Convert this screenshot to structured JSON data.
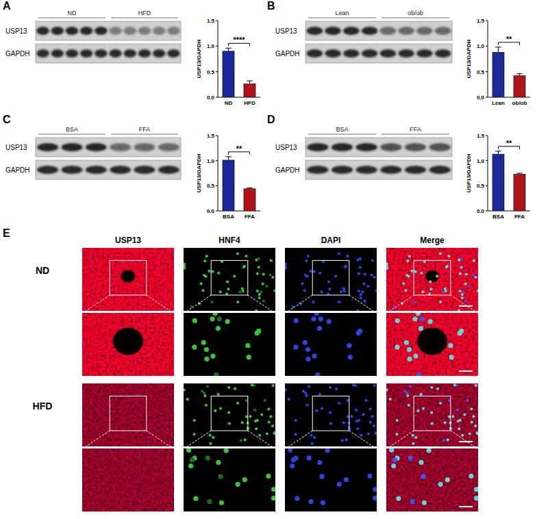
{
  "chart_data": [
    {
      "type": "bar",
      "panel": "A",
      "categories": [
        "ND",
        "HFD"
      ],
      "values": [
        0.9,
        0.26
      ],
      "errors": [
        0.06,
        0.06
      ],
      "colors": [
        "#1a2a9c",
        "#b0141a"
      ],
      "y_label": "USP13/GAPDH",
      "annotation": "****",
      "ylim": [
        0,
        1.5
      ],
      "yticks": [
        {
          "value": 0,
          "label": "0.0"
        },
        {
          "value": 0.5,
          "label": "0.5"
        },
        {
          "value": 1,
          "label": "1.0"
        },
        {
          "value": 1.5,
          "label": "1.5"
        }
      ],
      "grid": false
    },
    {
      "type": "bar",
      "panel": "B",
      "categories": [
        "Lean",
        "ob/ob"
      ],
      "values": [
        0.88,
        0.42
      ],
      "errors": [
        0.1,
        0.04
      ],
      "colors": [
        "#1a2a9c",
        "#b0141a"
      ],
      "y_label": "USP13/GAPDH",
      "annotation": "**",
      "ylim": [
        0,
        1.5
      ],
      "yticks": [
        {
          "value": 0,
          "label": "0.0"
        },
        {
          "value": 0.5,
          "label": "0.5"
        },
        {
          "value": 1,
          "label": "1.0"
        },
        {
          "value": 1.5,
          "label": "1.5"
        }
      ],
      "grid": false
    },
    {
      "type": "bar",
      "panel": "C",
      "categories": [
        "BSA",
        "FFA"
      ],
      "values": [
        1.01,
        0.44
      ],
      "errors": [
        0.07,
        0.02
      ],
      "colors": [
        "#1a2a9c",
        "#b0141a"
      ],
      "y_label": "USP13/GAPDH",
      "annotation": "**",
      "ylim": [
        0,
        1.5
      ],
      "yticks": [
        {
          "value": 0,
          "label": "0.0"
        },
        {
          "value": 0.5,
          "label": "0.5"
        },
        {
          "value": 1,
          "label": "1.0"
        },
        {
          "value": 1.5,
          "label": "1.5"
        }
      ],
      "grid": false
    },
    {
      "type": "bar",
      "panel": "D",
      "categories": [
        "BSA",
        "FFA"
      ],
      "values": [
        1.13,
        0.73
      ],
      "errors": [
        0.06,
        0.02
      ],
      "colors": [
        "#1a2a9c",
        "#b0141a"
      ],
      "y_label": "USP13/GAPDH",
      "annotation": "**",
      "ylim": [
        0,
        1.5
      ],
      "yticks": [
        {
          "value": 0,
          "label": "0.0"
        },
        {
          "value": 0.5,
          "label": "0.5"
        },
        {
          "value": 1,
          "label": "1.0"
        },
        {
          "value": 1.5,
          "label": "1.5"
        }
      ],
      "grid": false
    }
  ],
  "blots": [
    {
      "rows": [
        "USP13",
        "GAPDH"
      ],
      "groups": [
        {
          "label": "ND",
          "lanes": 5
        },
        {
          "label": "HFD",
          "lanes": 5
        }
      ]
    },
    {
      "rows": [
        "USP13",
        "GAPDH"
      ],
      "groups": [
        {
          "label": "Lean",
          "lanes": 4
        },
        {
          "label": "ob/ob",
          "lanes": 4
        }
      ]
    },
    {
      "rows": [
        "USP13",
        "GAPDH"
      ],
      "groups": [
        {
          "label": "BSA",
          "lanes": 3
        },
        {
          "label": "FFA",
          "lanes": 3
        }
      ]
    },
    {
      "rows": [
        "USP13",
        "GAPDH"
      ],
      "groups": [
        {
          "label": "BSA",
          "lanes": 3
        },
        {
          "label": "FFA",
          "lanes": 3
        }
      ]
    }
  ],
  "immunofluorescence": {
    "panel": "E",
    "channels": [
      "USP13",
      "HNF4",
      "DAPI",
      "Merge"
    ],
    "conditions": [
      "ND",
      "HFD"
    ]
  }
}
